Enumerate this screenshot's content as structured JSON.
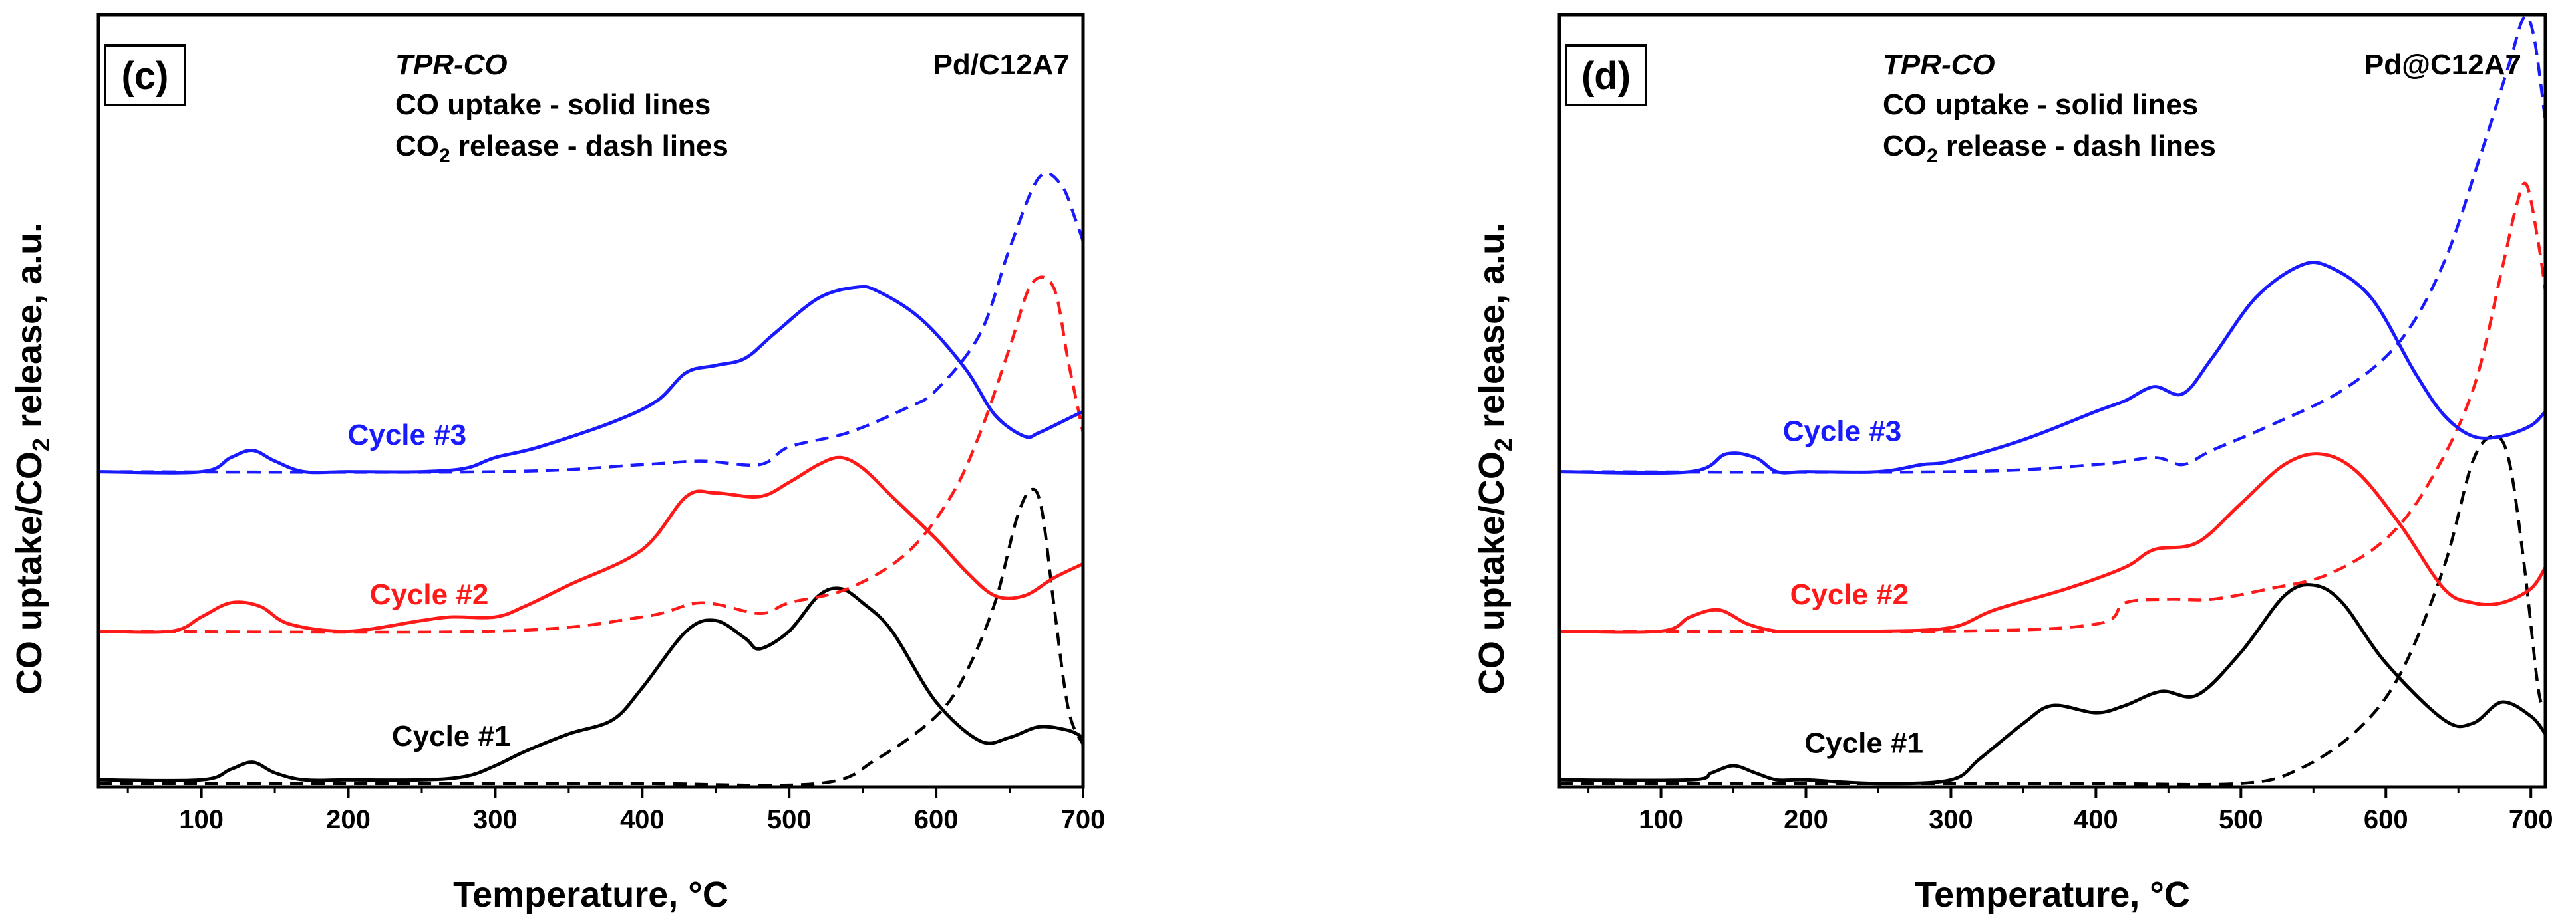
{
  "chart_data": [
    {
      "type": "line",
      "panel_label": "(c)",
      "sample": "Pd/C12A7",
      "annotation": {
        "title": "TPR-CO",
        "line1": "CO uptake - solid lines",
        "line2_prefix": "CO",
        "line2_sub": "2",
        "line2_suffix": " release - dash lines"
      },
      "xlabel": "Temperature, °C",
      "ylabel_prefix": "CO uptake/CO",
      "ylabel_sub": "2",
      "ylabel_suffix": " release, a.u.",
      "xlim": [
        30,
        700
      ],
      "ylim": [
        0,
        10.9
      ],
      "xticks": [
        100,
        200,
        300,
        400,
        500,
        600,
        700
      ],
      "colors": {
        "cycle1": "#000000",
        "cycle2": "#ff1a1a",
        "cycle3": "#1a1aff"
      },
      "series": [
        {
          "name": "Cycle #1",
          "kind": "uptake",
          "color": "#000000",
          "dashed": false,
          "x": [
            30,
            100,
            120,
            135,
            150,
            170,
            200,
            250,
            280,
            300,
            320,
            350,
            380,
            400,
            430,
            450,
            470,
            480,
            500,
            520,
            535,
            550,
            570,
            600,
            630,
            650,
            670,
            690,
            700
          ],
          "y": [
            0.1,
            0.1,
            0.25,
            0.35,
            0.2,
            0.1,
            0.1,
            0.1,
            0.15,
            0.3,
            0.5,
            0.75,
            0.95,
            1.4,
            2.2,
            2.35,
            2.1,
            1.95,
            2.2,
            2.7,
            2.8,
            2.6,
            2.2,
            1.2,
            0.65,
            0.7,
            0.85,
            0.8,
            0.7
          ]
        },
        {
          "name": "Cycle #1",
          "kind": "release",
          "color": "#000000",
          "dashed": true,
          "x": [
            30,
            200,
            300,
            400,
            520,
            560,
            600,
            620,
            640,
            655,
            665,
            672,
            680,
            690,
            700
          ],
          "y": [
            0.05,
            0.05,
            0.05,
            0.05,
            0.05,
            0.4,
            1.0,
            1.6,
            2.6,
            3.8,
            4.2,
            3.9,
            2.6,
            1.1,
            0.6
          ]
        },
        {
          "name": "Cycle #2",
          "kind": "uptake",
          "color": "#ff1a1a",
          "dashed": false,
          "x": [
            30,
            80,
            100,
            120,
            140,
            160,
            200,
            250,
            270,
            300,
            320,
            350,
            400,
            430,
            450,
            480,
            500,
            520,
            535,
            550,
            570,
            600,
            620,
            640,
            660,
            680,
            700
          ],
          "y": [
            2.2,
            2.2,
            2.4,
            2.6,
            2.55,
            2.3,
            2.2,
            2.35,
            2.4,
            2.4,
            2.55,
            2.85,
            3.35,
            4.1,
            4.15,
            4.1,
            4.3,
            4.55,
            4.65,
            4.5,
            4.1,
            3.5,
            3.05,
            2.7,
            2.7,
            2.95,
            3.15
          ]
        },
        {
          "name": "Cycle #2",
          "kind": "release",
          "color": "#ff1a1a",
          "dashed": true,
          "x": [
            30,
            300,
            400,
            440,
            480,
            500,
            540,
            580,
            610,
            630,
            650,
            665,
            680,
            690,
            700
          ],
          "y": [
            2.2,
            2.2,
            2.4,
            2.6,
            2.45,
            2.6,
            2.8,
            3.3,
            4.1,
            5.0,
            6.2,
            7.1,
            7.05,
            6.0,
            5.0
          ]
        },
        {
          "name": "Cycle #3",
          "kind": "uptake",
          "color": "#1a1aff",
          "dashed": false,
          "x": [
            30,
            100,
            120,
            135,
            150,
            170,
            200,
            250,
            280,
            300,
            330,
            380,
            410,
            430,
            450,
            470,
            490,
            520,
            545,
            560,
            590,
            620,
            640,
            660,
            670,
            690,
            700
          ],
          "y": [
            4.45,
            4.45,
            4.65,
            4.75,
            4.6,
            4.45,
            4.45,
            4.45,
            4.5,
            4.65,
            4.8,
            5.15,
            5.45,
            5.85,
            5.95,
            6.05,
            6.4,
            6.9,
            7.05,
            7.0,
            6.6,
            5.9,
            5.25,
            4.95,
            5.0,
            5.2,
            5.3
          ]
        },
        {
          "name": "Cycle #3",
          "kind": "release",
          "color": "#1a1aff",
          "dashed": true,
          "x": [
            30,
            300,
            400,
            440,
            480,
            500,
            540,
            580,
            600,
            630,
            650,
            670,
            685,
            695,
            700
          ],
          "y": [
            4.45,
            4.45,
            4.55,
            4.6,
            4.55,
            4.8,
            5.0,
            5.35,
            5.6,
            6.4,
            7.6,
            8.6,
            8.5,
            8.0,
            7.7
          ]
        }
      ],
      "cycle_labels": [
        {
          "text": "Cycle #1",
          "color": "#000000",
          "x": 270,
          "y": 0.45
        },
        {
          "text": "Cycle #2",
          "color": "#ff1a1a",
          "x": 255,
          "y": 2.45
        },
        {
          "text": "Cycle #3",
          "color": "#1a1aff",
          "x": 240,
          "y": 4.7
        }
      ]
    },
    {
      "type": "line",
      "panel_label": "(d)",
      "sample": "Pd@C12A7",
      "annotation": {
        "title": "TPR-CO",
        "line1": "CO uptake - solid lines",
        "line2_prefix": "CO",
        "line2_sub": "2",
        "line2_suffix": " release - dash lines"
      },
      "xlabel": "Temperature, °C",
      "ylabel_prefix": "CO uptake/CO",
      "ylabel_sub": "2",
      "ylabel_suffix": " release, a.u.",
      "xlim": [
        30,
        710
      ],
      "ylim": [
        0,
        10.9
      ],
      "xticks": [
        100,
        200,
        300,
        400,
        500,
        600,
        700
      ],
      "colors": {
        "cycle1": "#000000",
        "cycle2": "#ff1a1a",
        "cycle3": "#1a1aff"
      },
      "series": [
        {
          "name": "Cycle #1",
          "kind": "uptake",
          "color": "#000000",
          "dashed": false,
          "x": [
            30,
            120,
            135,
            150,
            165,
            180,
            200,
            250,
            300,
            320,
            350,
            370,
            400,
            420,
            445,
            470,
            500,
            530,
            550,
            570,
            600,
            640,
            660,
            680,
            700,
            710
          ],
          "y": [
            0.1,
            0.1,
            0.2,
            0.3,
            0.2,
            0.1,
            0.1,
            0.05,
            0.1,
            0.4,
            0.9,
            1.15,
            1.05,
            1.15,
            1.35,
            1.3,
            1.9,
            2.7,
            2.85,
            2.6,
            1.75,
            0.95,
            0.9,
            1.2,
            1.0,
            0.75
          ]
        },
        {
          "name": "Cycle #1",
          "kind": "release",
          "color": "#000000",
          "dashed": true,
          "x": [
            30,
            200,
            300,
            400,
            500,
            540,
            580,
            610,
            640,
            660,
            675,
            685,
            695,
            705,
            710
          ],
          "y": [
            0.05,
            0.05,
            0.05,
            0.05,
            0.05,
            0.25,
            0.8,
            1.6,
            3.1,
            4.6,
            4.95,
            4.6,
            3.2,
            1.4,
            1.1
          ]
        },
        {
          "name": "Cycle #2",
          "kind": "uptake",
          "color": "#ff1a1a",
          "dashed": false,
          "x": [
            30,
            100,
            120,
            140,
            160,
            180,
            200,
            250,
            300,
            330,
            380,
            420,
            440,
            470,
            500,
            530,
            555,
            580,
            610,
            640,
            660,
            680,
            700,
            710
          ],
          "y": [
            2.2,
            2.2,
            2.4,
            2.5,
            2.3,
            2.2,
            2.2,
            2.2,
            2.25,
            2.5,
            2.8,
            3.1,
            3.35,
            3.45,
            4.0,
            4.55,
            4.7,
            4.45,
            3.7,
            2.8,
            2.6,
            2.6,
            2.8,
            3.1
          ]
        },
        {
          "name": "Cycle #2",
          "kind": "release",
          "color": "#ff1a1a",
          "dashed": true,
          "x": [
            30,
            300,
            400,
            420,
            450,
            480,
            520,
            560,
            600,
            630,
            660,
            680,
            690,
            697,
            705,
            710
          ],
          "y": [
            2.2,
            2.2,
            2.3,
            2.6,
            2.65,
            2.65,
            2.8,
            3.0,
            3.5,
            4.3,
            5.6,
            7.3,
            8.2,
            8.5,
            7.7,
            7.0
          ]
        },
        {
          "name": "Cycle #3",
          "kind": "uptake",
          "color": "#1a1aff",
          "dashed": false,
          "x": [
            30,
            120,
            145,
            165,
            180,
            200,
            250,
            280,
            300,
            350,
            400,
            420,
            440,
            460,
            480,
            510,
            540,
            560,
            590,
            620,
            640,
            660,
            680,
            700,
            710
          ],
          "y": [
            4.45,
            4.45,
            4.7,
            4.65,
            4.45,
            4.45,
            4.45,
            4.55,
            4.6,
            4.9,
            5.3,
            5.45,
            5.65,
            5.55,
            6.05,
            6.9,
            7.35,
            7.35,
            6.9,
            5.85,
            5.25,
            4.95,
            4.95,
            5.1,
            5.3
          ]
        },
        {
          "name": "Cycle #3",
          "kind": "release",
          "color": "#1a1aff",
          "dashed": true,
          "x": [
            30,
            300,
            400,
            440,
            460,
            480,
            520,
            570,
            610,
            640,
            665,
            685,
            695,
            702,
            710
          ],
          "y": [
            4.45,
            4.45,
            4.55,
            4.65,
            4.55,
            4.75,
            5.1,
            5.6,
            6.3,
            7.4,
            8.9,
            10.2,
            10.85,
            10.6,
            9.4
          ]
        }
      ],
      "cycle_labels": [
        {
          "text": "Cycle #1",
          "color": "#000000",
          "x": 240,
          "y": 0.35
        },
        {
          "text": "Cycle #2",
          "color": "#ff1a1a",
          "x": 230,
          "y": 2.45
        },
        {
          "text": "Cycle #3",
          "color": "#1a1aff",
          "x": 225,
          "y": 4.75
        }
      ]
    }
  ]
}
